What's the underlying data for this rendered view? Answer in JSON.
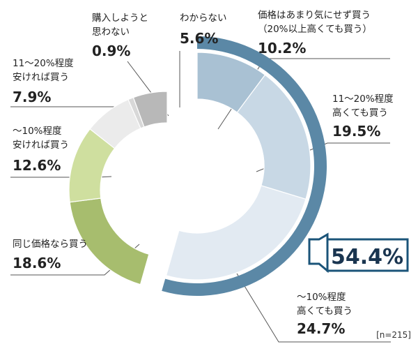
{
  "chart_data": {
    "type": "pie",
    "variant": "donut-with-exploded-group",
    "note": "[n=215]",
    "highlight": {
      "value_text": "54.4%",
      "value": 54.4,
      "color": "#5b88a6",
      "box_color": "#1b5479"
    },
    "slices": [
      {
        "label_lines": [
          "価格はあまり気にせず買う",
          "（20%以上高くても買う）"
        ],
        "value": 10.2,
        "value_text": "10.2%",
        "color": "#a9c1d3",
        "group": "exploded"
      },
      {
        "label_lines": [
          "11～20%程度",
          "高くても買う"
        ],
        "value": 19.5,
        "value_text": "19.5%",
        "color": "#c8d8e5",
        "group": "exploded"
      },
      {
        "label_lines": [
          "～10%程度",
          "高くても買う"
        ],
        "value": 24.7,
        "value_text": "24.7%",
        "color": "#e2eaf2",
        "group": "exploded"
      },
      {
        "label_lines": [
          "同じ価格なら買う"
        ],
        "value": 18.6,
        "value_text": "18.6%",
        "color": "#a7bd6e",
        "group": "donut"
      },
      {
        "label_lines": [
          "～10%程度",
          "安ければ買う"
        ],
        "value": 12.6,
        "value_text": "12.6%",
        "color": "#cfdf9f",
        "group": "donut"
      },
      {
        "label_lines": [
          "11～20%程度",
          "安ければ買う"
        ],
        "value": 7.9,
        "value_text": "7.9%",
        "color": "#ebebeb",
        "group": "donut"
      },
      {
        "label_lines": [
          "購入しようと",
          "思わない"
        ],
        "value": 0.9,
        "value_text": "0.9%",
        "color": "#d8d8d8",
        "group": "donut"
      },
      {
        "label_lines": [
          "わからない"
        ],
        "value": 5.6,
        "value_text": "5.6%",
        "color": "#b8b8b8",
        "group": "donut"
      }
    ]
  }
}
